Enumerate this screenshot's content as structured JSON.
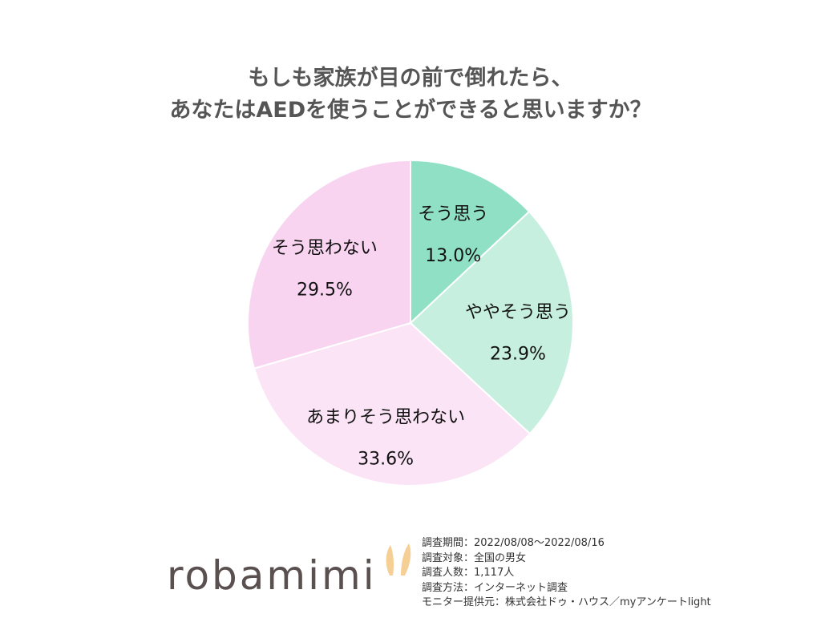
{
  "title": {
    "line1": "もしも家族が目の前で倒れたら、",
    "line2": "あなたはAEDを使うことができると思いますか？"
  },
  "chart_data": {
    "type": "pie",
    "start": "12 o'clock",
    "direction": "clockwise",
    "slices": [
      {
        "label": "そう思う",
        "value": 13.0,
        "value_label": "13.0%",
        "color": "#8fe0c4"
      },
      {
        "label": "ややそう思う",
        "value": 23.9,
        "value_label": "23.9%",
        "color": "#c6efe0"
      },
      {
        "label": "あまりそう思わない",
        "value": 33.6,
        "value_label": "33.6%",
        "color": "#fbe4f6"
      },
      {
        "label": "そう思わない",
        "value": 29.5,
        "value_label": "29.5%",
        "color": "#f8d4f1"
      }
    ]
  },
  "footer": {
    "logo_text": "robamimi",
    "logo_color": "#5a5050",
    "ear_color": "#f5cf94",
    "survey_lines": [
      "調査期間：2022/08/08～2022/08/16",
      "調査対象：全国の男女",
      "調査人数：1,117人",
      "調査方法：インターネット調査",
      "モニター提供元：株式会社ドゥ・ハウス／myアンケートlight"
    ]
  }
}
